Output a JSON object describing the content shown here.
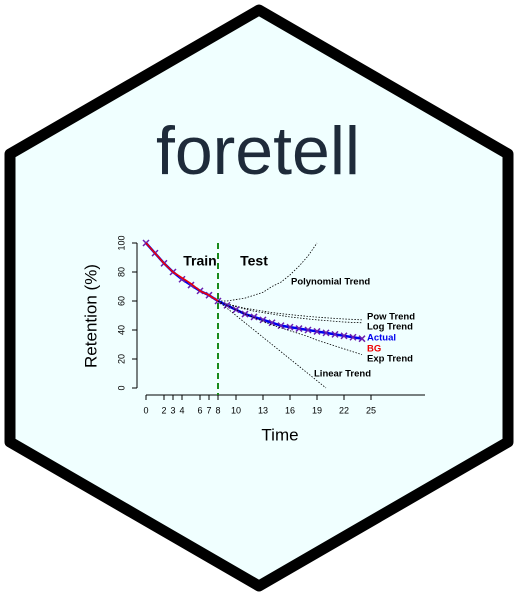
{
  "chart_data": {
    "type": "line",
    "title": "foretell",
    "x_label": "Time",
    "y_label": "Retention (%)",
    "annotations": [
      "Train",
      "Test"
    ],
    "train_end": 8,
    "x": [
      0,
      1,
      2,
      3,
      4,
      5,
      6,
      7,
      8,
      9,
      10,
      11,
      12,
      13,
      14,
      15,
      16,
      17,
      18,
      19,
      20,
      21,
      22,
      23,
      24
    ],
    "xlim": [
      0,
      25
    ],
    "xticks": [
      0,
      2,
      3,
      4,
      6,
      7,
      8,
      10,
      13,
      16,
      19,
      22,
      25
    ],
    "ylim": [
      0,
      100
    ],
    "yticks": [
      0,
      20,
      40,
      60,
      80,
      100
    ],
    "series": [
      {
        "name": "Polynomial Trend",
        "color": "#000000",
        "values": [
          null,
          null,
          null,
          null,
          null,
          null,
          null,
          null,
          60,
          60,
          61,
          62,
          64,
          66,
          70,
          73,
          78,
          84,
          91,
          100,
          null,
          null,
          null,
          null,
          null
        ]
      },
      {
        "name": "Pow Trend",
        "color": "#000000",
        "values": [
          null,
          null,
          null,
          null,
          null,
          null,
          null,
          null,
          60,
          58,
          56.5,
          55,
          54,
          53,
          52,
          51.3,
          50.6,
          50,
          49.4,
          48.9,
          48.4,
          48,
          47.6,
          47.3,
          47
        ]
      },
      {
        "name": "Log Trend",
        "color": "#000000",
        "values": [
          null,
          null,
          null,
          null,
          null,
          null,
          null,
          null,
          60,
          58,
          56,
          54.5,
          53,
          52,
          51,
          50,
          49,
          48.3,
          47.6,
          47,
          46.5,
          46,
          45.5,
          45.2,
          45
        ]
      },
      {
        "name": "Actual",
        "color": "#0000ee",
        "values": [
          100,
          93,
          86,
          80,
          75,
          71,
          67,
          64,
          60,
          57,
          54,
          51,
          49,
          47,
          45,
          43,
          42,
          41,
          40,
          39,
          38,
          37,
          36,
          35,
          34
        ]
      },
      {
        "name": "BG",
        "color": "#ee0000",
        "values": [
          100,
          93,
          86,
          80,
          76,
          72,
          67,
          64,
          60,
          null,
          null,
          null,
          null,
          null,
          null,
          null,
          null,
          null,
          null,
          null,
          null,
          null,
          null,
          null,
          null
        ]
      },
      {
        "name": "Exp Trend",
        "color": "#000000",
        "values": [
          null,
          null,
          null,
          null,
          null,
          null,
          null,
          null,
          60,
          57,
          54,
          51,
          48.5,
          46,
          43.5,
          41.5,
          39.5,
          37.5,
          35.5,
          33,
          31,
          29,
          27,
          25,
          23
        ]
      },
      {
        "name": "Linear Trend",
        "color": "#000000",
        "values": [
          null,
          null,
          null,
          null,
          null,
          null,
          null,
          null,
          60,
          55,
          50,
          45,
          40,
          35,
          30,
          25,
          20,
          15,
          10,
          5,
          0,
          null,
          null,
          null,
          null
        ]
      }
    ]
  }
}
